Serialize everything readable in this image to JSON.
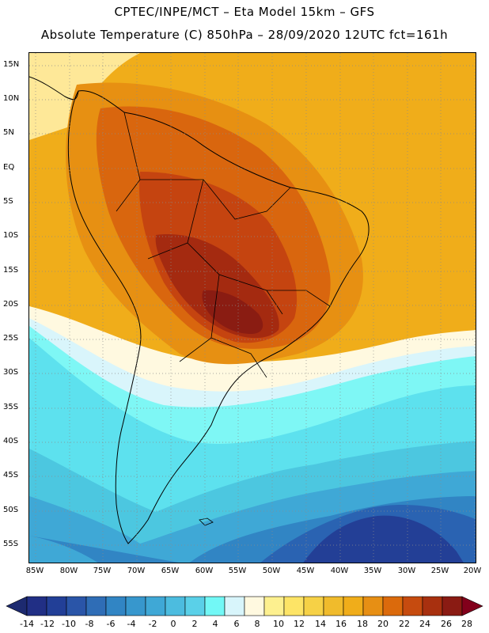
{
  "header": {
    "line1": "CPTEC/INPE/MCT –  Eta Model 15km – GFS",
    "line2": "Absolute Temperature (C) 850hPa – 28/09/2020 12UTC fct=161h"
  },
  "map": {
    "lat_labels": [
      "15N",
      "10N",
      "5N",
      "EQ",
      "5S",
      "10S",
      "15S",
      "20S",
      "25S",
      "30S",
      "35S",
      "40S",
      "45S",
      "50S",
      "55S"
    ],
    "lon_labels": [
      "85W",
      "80W",
      "75W",
      "70W",
      "65W",
      "60W",
      "55W",
      "50W",
      "45W",
      "40W",
      "35W",
      "30W",
      "25W",
      "20W"
    ],
    "background_color": "#f0ad1a",
    "warm_colors": [
      "#fee898",
      "#f7c93a",
      "#f0ad1a",
      "#e79012",
      "#d9660e",
      "#c54410",
      "#a42a10",
      "#8a1c12"
    ],
    "cold_colors": [
      "#fff9e0",
      "#d9f5fb",
      "#7ef7f5",
      "#5de1ee",
      "#4cc7e0",
      "#3fa8d6",
      "#3185c4",
      "#2a63b2",
      "#233f96"
    ]
  },
  "colorbar": {
    "labels": [
      "-14",
      "-12",
      "-10",
      "-8",
      "-6",
      "-4",
      "-2",
      "0",
      "2",
      "4",
      "6",
      "8",
      "10",
      "12",
      "14",
      "16",
      "18",
      "20",
      "22",
      "24",
      "26",
      "28"
    ],
    "colors": [
      "#212f85",
      "#223f97",
      "#2a55a8",
      "#2f6db6",
      "#3185c4",
      "#3797cd",
      "#3fa8d6",
      "#4cbcdf",
      "#5ad0e8",
      "#72f8f6",
      "#d8f5fb",
      "#fff9e0",
      "#fdf08f",
      "#fde466",
      "#f6d146",
      "#f0bb2c",
      "#f0ad1a",
      "#e78f14",
      "#db6a0c",
      "#c64b0f",
      "#a8300f",
      "#8a1b13"
    ],
    "left_arrow_color": "#1d2a70",
    "right_arrow_color": "#82001b"
  }
}
